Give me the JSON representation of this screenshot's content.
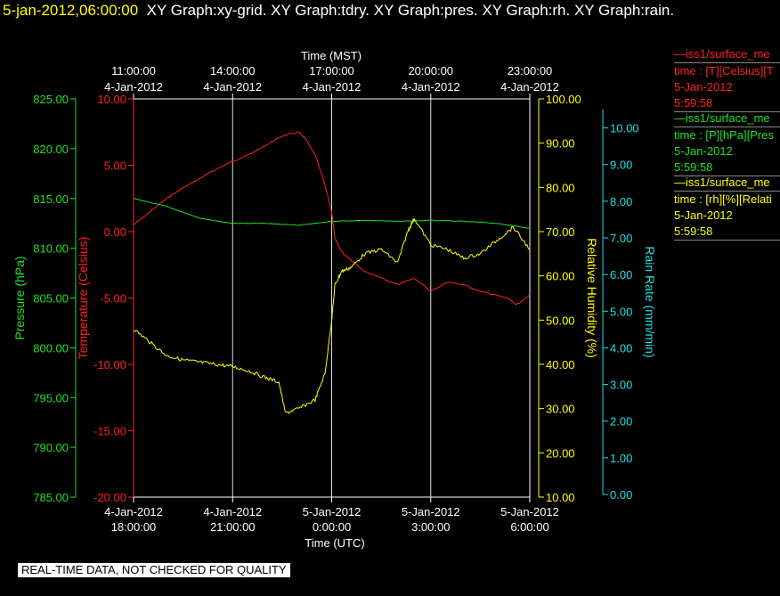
{
  "header": {
    "timestamp": "5-jan-2012,06:00:00",
    "graphs": "XY Graph:xy-grid.  XY Graph:tdry.  XY Graph:pres.  XY Graph:rh.  XY Graph:rain."
  },
  "legend": [
    {
      "color": "#ff2020",
      "name": "iss1/surface_me",
      "units": "time : [T][Celsius][T",
      "date": "5-Jan-2012",
      "time": "5:59:58"
    },
    {
      "color": "#20e020",
      "name": "iss1/surface_me",
      "units": "time : [P][hPa][Pres",
      "date": "5-Jan-2012",
      "time": "5:59:58"
    },
    {
      "color": "#ffff00",
      "name": "iss1/surface_me",
      "units": "time : [rh][%][Relati",
      "date": "5-Jan-2012",
      "time": "5:59:58"
    }
  ],
  "banner": "REAL-TIME DATA, NOT CHECKED FOR QUALITY",
  "chart_data": {
    "type": "line",
    "xlabel_top": "Time (MST)",
    "xlabel_bottom": "Time (UTC)",
    "x_range_utc_hours": [
      18,
      30
    ],
    "top_ticks": [
      {
        "t": "11:00:00",
        "d": "4-Jan-2012"
      },
      {
        "t": "14:00:00",
        "d": "4-Jan-2012"
      },
      {
        "t": "17:00:00",
        "d": "4-Jan-2012"
      },
      {
        "t": "20:00:00",
        "d": "4-Jan-2012"
      },
      {
        "t": "23:00:00",
        "d": "4-Jan-2012"
      }
    ],
    "bottom_ticks": [
      {
        "d": "4-Jan-2012",
        "t": "18:00:00"
      },
      {
        "d": "4-Jan-2012",
        "t": "21:00:00"
      },
      {
        "d": "5-Jan-2012",
        "t": "0:00:00"
      },
      {
        "d": "5-Jan-2012",
        "t": "3:00:00"
      },
      {
        "d": "5-Jan-2012",
        "t": "6:00:00"
      }
    ],
    "grid": "vertical",
    "axes": {
      "pressure": {
        "label": "Pressure (hPa)",
        "color": "#20e020",
        "range": [
          785,
          825
        ],
        "ticks": [
          "785.00",
          "790.00",
          "795.00",
          "800.00",
          "805.00",
          "810.00",
          "815.00",
          "820.00",
          "825.00"
        ]
      },
      "temperature": {
        "label": "Temperature (Celsius)",
        "color": "#ff2020",
        "range": [
          -20,
          10
        ],
        "ticks": [
          "-20.00",
          "-15.00",
          "-10.00",
          "-5.00",
          "0.00",
          "5.00",
          "10.00"
        ]
      },
      "rh": {
        "label": "Relative Humidity (%)",
        "color": "#ffff00",
        "range": [
          10,
          100
        ],
        "ticks": [
          "10.00",
          "20.00",
          "30.00",
          "40.00",
          "50.00",
          "60.00",
          "70.00",
          "80.00",
          "90.00",
          "100.00"
        ]
      },
      "rain": {
        "label": "Rain Rate (mm/min)",
        "color": "#20e0e0",
        "range": [
          0,
          10.5
        ],
        "ticks": [
          "0.00",
          "1.00",
          "2.00",
          "3.00",
          "4.00",
          "5.00",
          "6.00",
          "7.00",
          "8.00",
          "9.00",
          "10.00"
        ]
      }
    },
    "series": [
      {
        "name": "iss1/surface_me",
        "axis": "temperature",
        "color": "#ff2020",
        "x": [
          18.0,
          18.5,
          19.0,
          19.5,
          20.0,
          20.5,
          21.0,
          21.5,
          22.0,
          22.5,
          23.0,
          23.2,
          23.5,
          23.8,
          24.0,
          24.1,
          24.3,
          24.6,
          25.0,
          25.5,
          26.0,
          26.5,
          27.0,
          27.5,
          28.0,
          28.5,
          29.0,
          29.3,
          29.6,
          30.0
        ],
        "y": [
          0.5,
          1.5,
          2.5,
          3.3,
          4.0,
          4.7,
          5.3,
          5.8,
          6.5,
          7.2,
          7.5,
          7.0,
          5.8,
          3.5,
          1.5,
          -0.5,
          -1.5,
          -2.2,
          -3.0,
          -3.5,
          -4.0,
          -3.5,
          -4.5,
          -3.8,
          -4.0,
          -4.5,
          -4.8,
          -5.0,
          -5.5,
          -4.8
        ]
      },
      {
        "name": "iss1/surface_me",
        "axis": "pressure",
        "color": "#20e020",
        "x": [
          18.0,
          19.0,
          20.0,
          21.0,
          22.0,
          23.0,
          24.0,
          25.0,
          26.0,
          27.0,
          28.0,
          29.0,
          30.0
        ],
        "y": [
          815.0,
          814.2,
          813.0,
          812.5,
          812.5,
          812.3,
          812.7,
          812.8,
          812.7,
          812.8,
          812.7,
          812.5,
          812.0
        ]
      },
      {
        "name": "iss1/surface_me",
        "axis": "rh",
        "color": "#ffff00",
        "x": [
          18.0,
          18.5,
          19.0,
          19.5,
          20.0,
          20.5,
          21.0,
          21.5,
          22.0,
          22.4,
          22.6,
          23.0,
          23.5,
          23.8,
          24.0,
          24.1,
          24.3,
          24.6,
          25.0,
          25.5,
          26.0,
          26.3,
          26.5,
          27.0,
          27.5,
          28.0,
          28.5,
          29.0,
          29.5,
          30.0
        ],
        "y": [
          48.0,
          45.0,
          42.0,
          41.0,
          40.5,
          40.0,
          39.5,
          38.5,
          37.0,
          36.0,
          29.0,
          30.0,
          32.0,
          38.0,
          50.0,
          58.0,
          61.0,
          62.0,
          65.0,
          66.0,
          63.0,
          70.0,
          73.0,
          67.0,
          66.0,
          64.0,
          65.0,
          68.0,
          71.0,
          66.0
        ]
      }
    ]
  }
}
